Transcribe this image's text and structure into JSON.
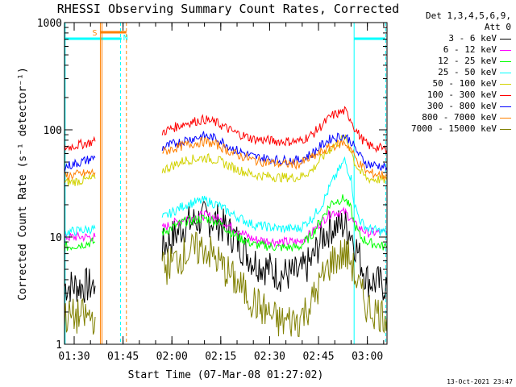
{
  "chart_data": {
    "type": "line",
    "title": "RHESSI Observing Summary Count Rates, Corrected",
    "xlabel": "Start Time (07-Mar-08 01:27:02)",
    "ylabel": "Corrected Count Rate (s⁻¹ detector⁻¹)",
    "x_unit": "minutes after 01:27:02",
    "xlim": [
      0,
      99
    ],
    "ylim": [
      1,
      1000
    ],
    "yscale": "log",
    "x_ticks": [
      "01:30",
      "01:45",
      "02:00",
      "02:15",
      "02:30",
      "02:45",
      "03:00"
    ],
    "y_ticks": [
      "1",
      "10",
      "100",
      "1000"
    ],
    "legend_header": [
      "Det 1,3,4,5,6,9,",
      "Att 0"
    ],
    "legend_position": "right",
    "series": [
      {
        "name": "3 - 6 keV",
        "color": "#000000",
        "x": [
          0,
          9.4,
          11,
          17,
          22,
          30,
          37,
          43,
          47,
          52,
          58,
          66,
          72,
          76,
          79,
          82,
          86,
          88,
          89,
          90.9,
          93,
          99
        ],
        "y": [
          3.5,
          3.5,
          null,
          null,
          null,
          8,
          13,
          15,
          14,
          10,
          6,
          4.5,
          4.5,
          6,
          10,
          12.5,
          13,
          11,
          9,
          6,
          4,
          3.5
        ]
      },
      {
        "name": "6 - 12 keV",
        "color": "#ff00ff",
        "x": [
          0,
          9.4,
          11,
          17,
          22,
          30,
          37,
          43,
          47,
          52,
          58,
          66,
          72,
          76,
          79,
          82,
          86,
          88,
          89,
          90.9,
          93,
          99
        ],
        "y": [
          10,
          10,
          null,
          null,
          null,
          12,
          15,
          16,
          15,
          12,
          9.5,
          9,
          9,
          11,
          14,
          17,
          17,
          15,
          13,
          12,
          11,
          11
        ]
      },
      {
        "name": "12 - 25 keV",
        "color": "#00ff00",
        "x": [
          0,
          9.4,
          11,
          17,
          22,
          30,
          37,
          43,
          47,
          52,
          58,
          66,
          72,
          76,
          79,
          82,
          86,
          88,
          89,
          90.9,
          93,
          99
        ],
        "y": [
          8,
          9,
          null,
          null,
          null,
          11,
          14,
          15,
          14,
          10.5,
          8.5,
          8,
          8,
          10.5,
          15,
          21,
          23,
          18,
          13,
          10,
          9,
          8
        ]
      },
      {
        "name": "25 - 50 keV",
        "color": "#00ffff",
        "x": [
          0,
          9.4,
          11,
          17,
          22,
          30,
          37,
          43,
          47,
          52,
          58,
          66,
          72,
          76,
          79,
          82,
          86,
          88,
          89,
          90.9,
          93,
          99
        ],
        "y": [
          11,
          12,
          null,
          null,
          null,
          15,
          20,
          22,
          20,
          16,
          13,
          12,
          12,
          15,
          20,
          32,
          52,
          35,
          20,
          14,
          12,
          11
        ]
      },
      {
        "name": "50 - 100 keV",
        "color": "#d2d200",
        "x": [
          0,
          9.4,
          11,
          17,
          22,
          30,
          37,
          43,
          47,
          52,
          58,
          66,
          72,
          76,
          79,
          82,
          86,
          88,
          89,
          90.9,
          93,
          99
        ],
        "y": [
          32,
          35,
          null,
          null,
          null,
          42,
          52,
          55,
          52,
          44,
          38,
          36,
          36,
          42,
          55,
          68,
          85,
          65,
          50,
          40,
          35,
          34
        ]
      },
      {
        "name": "100 - 300 keV",
        "color": "#ff0000",
        "x": [
          0,
          9.4,
          11,
          17,
          22,
          30,
          37,
          43,
          47,
          52,
          58,
          66,
          72,
          76,
          79,
          82,
          86,
          88,
          89,
          90.9,
          93,
          99
        ],
        "y": [
          68,
          78,
          null,
          null,
          null,
          95,
          115,
          125,
          115,
          95,
          82,
          78,
          78,
          90,
          110,
          135,
          150,
          125,
          105,
          85,
          72,
          65
        ]
      },
      {
        "name": "300 - 800 keV",
        "color": "#0000ff",
        "x": [
          0,
          9.4,
          11,
          17,
          22,
          30,
          37,
          43,
          47,
          52,
          58,
          66,
          72,
          76,
          79,
          82,
          86,
          88,
          89,
          90.9,
          93,
          99
        ],
        "y": [
          45,
          55,
          null,
          null,
          null,
          68,
          80,
          88,
          82,
          66,
          56,
          52,
          52,
          60,
          72,
          84,
          88,
          78,
          68,
          56,
          48,
          45
        ]
      },
      {
        "name": "800 - 7000 keV",
        "color": "#ff8000",
        "x": [
          0,
          9.4,
          11,
          17,
          22,
          30,
          37,
          43,
          47,
          52,
          58,
          66,
          72,
          76,
          79,
          82,
          86,
          88,
          89,
          90.9,
          93,
          99
        ],
        "y": [
          37,
          40,
          null,
          null,
          null,
          62,
          72,
          78,
          72,
          60,
          52,
          48,
          48,
          55,
          62,
          70,
          76,
          66,
          56,
          47,
          40,
          37
        ]
      },
      {
        "name": "7000 - 15000 keV",
        "color": "#808000",
        "x": [
          0,
          9.4,
          11,
          17,
          22,
          30,
          37,
          43,
          47,
          52,
          58,
          66,
          72,
          76,
          79,
          82,
          86,
          88,
          89,
          90.9,
          93,
          99
        ],
        "y": [
          1.8,
          1.8,
          null,
          null,
          null,
          5,
          7,
          8,
          6,
          4,
          2.5,
          1.6,
          1.7,
          2.5,
          4,
          6,
          7,
          6,
          4.5,
          3,
          2.2,
          1.8
        ]
      }
    ],
    "annotations": [
      {
        "label": "S",
        "color": "#ff8000",
        "x_start": 11,
        "x_end": 19
      },
      {
        "label": "N",
        "color": "#00ffff",
        "x_start": 0,
        "x_end": 17.5
      }
    ]
  },
  "timestamp": "13-Oct-2021 23:47"
}
